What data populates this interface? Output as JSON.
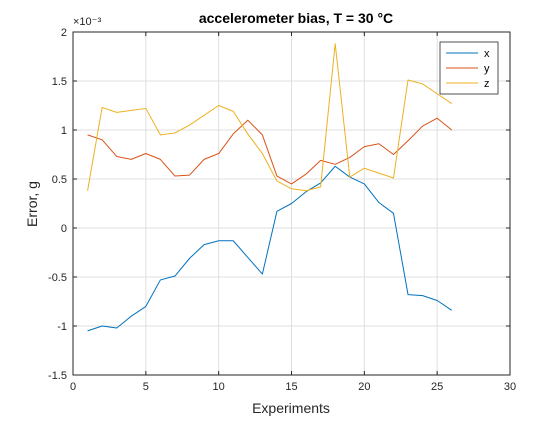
{
  "chart_data": {
    "type": "line",
    "title": "accelerometer bias, T = 30 °C",
    "xlabel": "Experiments",
    "ylabel": "Error, g",
    "exponent_label": "×10⁻³",
    "xlim": [
      0,
      30
    ],
    "ylim": [
      -1.5,
      2
    ],
    "xticks": [
      0,
      5,
      10,
      15,
      20,
      25,
      30
    ],
    "yticks": [
      -1.5,
      -1,
      -0.5,
      0,
      0.5,
      1,
      1.5,
      2
    ],
    "x": [
      1,
      2,
      3,
      4,
      5,
      6,
      7,
      8,
      9,
      10,
      11,
      12,
      13,
      14,
      15,
      16,
      17,
      18,
      19,
      20,
      21,
      22,
      23,
      24,
      25,
      26
    ],
    "grid": true,
    "legend_position": "top-right",
    "series": [
      {
        "name": "x",
        "color": "#0072BD",
        "values": [
          -1.05,
          -1.0,
          -1.02,
          -0.9,
          -0.8,
          -0.53,
          -0.49,
          -0.31,
          -0.17,
          -0.13,
          -0.13,
          -0.3,
          -0.47,
          0.17,
          0.25,
          0.37,
          0.46,
          0.63,
          0.52,
          0.45,
          0.26,
          0.15,
          -0.68,
          -0.69,
          -0.74,
          -0.84
        ]
      },
      {
        "name": "y",
        "color": "#D95319",
        "values": [
          0.95,
          0.9,
          0.73,
          0.7,
          0.76,
          0.7,
          0.53,
          0.54,
          0.7,
          0.76,
          0.96,
          1.1,
          0.95,
          0.53,
          0.45,
          0.55,
          0.69,
          0.65,
          0.72,
          0.83,
          0.86,
          0.75,
          0.89,
          1.04,
          1.12,
          1.0
        ]
      },
      {
        "name": "z",
        "color": "#EDB120",
        "values": [
          0.38,
          1.23,
          1.18,
          1.2,
          1.22,
          0.95,
          0.97,
          1.05,
          1.15,
          1.25,
          1.19,
          0.96,
          0.76,
          0.48,
          0.4,
          0.38,
          0.42,
          1.88,
          0.52,
          0.61,
          0.56,
          0.51,
          1.51,
          1.47,
          1.37,
          1.27
        ]
      }
    ]
  }
}
